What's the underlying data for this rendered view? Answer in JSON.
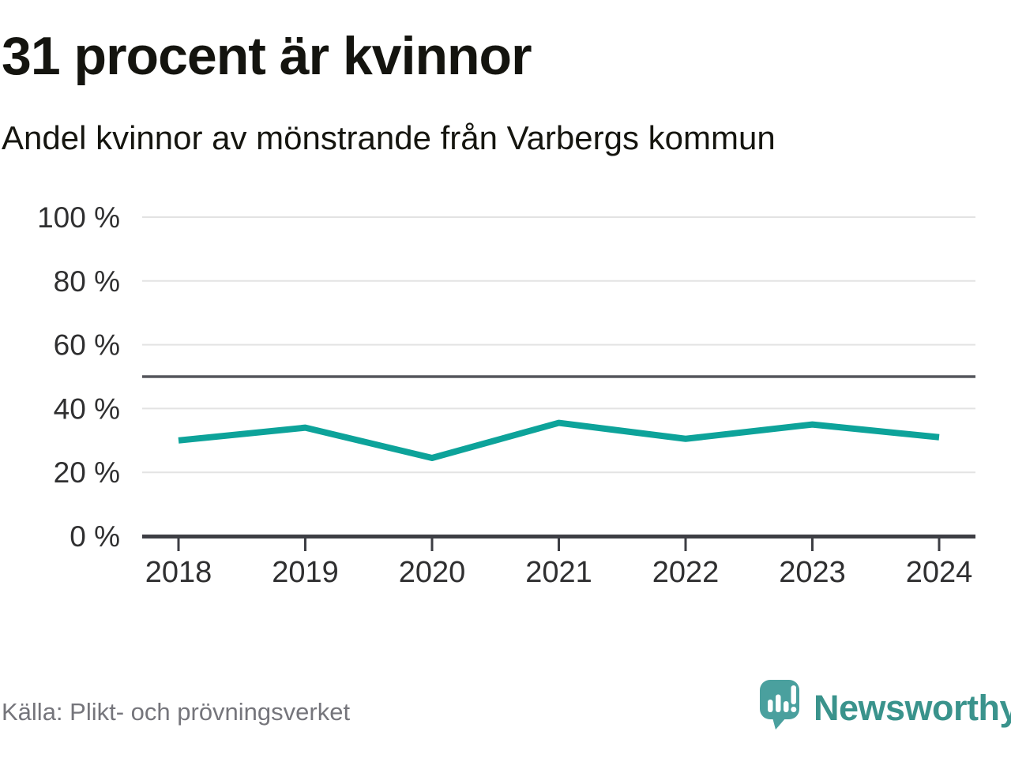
{
  "chart_data": {
    "type": "line",
    "title": "31 procent är kvinnor",
    "subtitle": "Andel kvinnor av mönstrande från Varbergs kommun",
    "x": [
      2018,
      2019,
      2020,
      2021,
      2022,
      2023,
      2024
    ],
    "series": [
      {
        "name": "Andel kvinnor av mönstrande",
        "values": [
          30,
          34,
          24.5,
          35.5,
          30.5,
          35,
          31
        ]
      }
    ],
    "ylim": [
      0,
      100
    ],
    "yticks": [
      0,
      20,
      40,
      60,
      80,
      100
    ],
    "ytick_suffix": " %",
    "reference_line": 50,
    "grid": true,
    "legend": "none",
    "colors": {
      "line": "#0da39a",
      "grid": "#e3e3e3",
      "axis": "#3d3e44",
      "reference": "#55565c",
      "tick_label": "#2f2f30"
    }
  },
  "footer": {
    "source": "Källa: Plikt- och prövningsverket",
    "brand": "Newsworthy",
    "brand_color": "#3a938c",
    "logo_color": "#4aa09e"
  }
}
